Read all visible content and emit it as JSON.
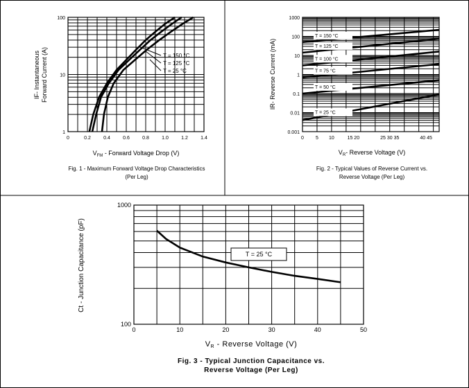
{
  "chart_data": [
    {
      "type": "line",
      "title": "Fig. 1 - Maximum Forward Voltage Drop Characteristics",
      "subtitle": "(Per Leg)",
      "xlabel_main": "V",
      "xlabel_sub": "FM",
      "xlabel_rest": " - Forward Voltage Drop (V)",
      "ylabel_line1": "IF- Instantaneous",
      "ylabel_line2": "Forward Current (A)",
      "xlim": [
        0,
        1.4
      ],
      "ylim": [
        1,
        100
      ],
      "yscale": "log",
      "xticks": [
        "0",
        "0.2",
        "0.4",
        "0.6",
        "0.8",
        "1.0",
        "1.2",
        "1.4"
      ],
      "yticks": [
        "1",
        "10",
        "100"
      ],
      "grid": true,
      "series": [
        {
          "name": "Tj = 150 °C",
          "label": "T  = 150 °C",
          "x": [
            0.22,
            0.26,
            0.32,
            0.4,
            0.5,
            0.6,
            0.7,
            0.8,
            0.9,
            1.0,
            1.1
          ],
          "y": [
            1,
            2,
            4,
            7,
            12,
            18,
            27,
            40,
            56,
            77,
            100
          ]
        },
        {
          "name": "Tj = 125 °C",
          "label": "T  = 125 °C",
          "x": [
            0.25,
            0.29,
            0.34,
            0.42,
            0.52,
            0.63,
            0.74,
            0.85,
            0.96,
            1.07,
            1.17
          ],
          "y": [
            1,
            2,
            4,
            7,
            12,
            18,
            27,
            40,
            56,
            77,
            100
          ]
        },
        {
          "name": "Tj = 25 °C",
          "label": "T  = 25 °C",
          "x": [
            0.35,
            0.37,
            0.41,
            0.47,
            0.57,
            0.69,
            0.81,
            0.94,
            1.06,
            1.18,
            1.29
          ],
          "y": [
            1,
            2,
            4,
            7,
            12,
            18,
            27,
            40,
            56,
            77,
            100
          ]
        }
      ]
    },
    {
      "type": "line",
      "title": "Fig. 2 - Typical Values of Reverse Current vs.",
      "subtitle": "Reverse Voltage (Per Leg)",
      "xlabel_main": "V",
      "xlabel_sub": "R",
      "xlabel_rest": "- Reverse Voltage (V)",
      "ylabel_main": "IR- Reverse Current (mA)",
      "xlim": [
        0,
        47
      ],
      "ylim": [
        0.001,
        1000
      ],
      "yscale": "log",
      "xticks": [
        "0",
        "5",
        "10",
        "15 20",
        "25 30 35",
        "40 45"
      ],
      "yticks": [
        "0.001",
        "0.01",
        "0.1",
        "1",
        "10",
        "100",
        "1000"
      ],
      "grid": true,
      "series": [
        {
          "name": "Tj = 150 °C",
          "label": "T  = 150 °C",
          "x": [
            0,
            47
          ],
          "y": [
            50,
            220
          ]
        },
        {
          "name": "Tj = 125 °C",
          "label": "T  = 125 °C",
          "x": [
            0,
            47
          ],
          "y": [
            14,
            75
          ]
        },
        {
          "name": "Tj = 100 °C",
          "label": "T  = 100 °C",
          "x": [
            0,
            47
          ],
          "y": [
            3,
            16
          ]
        },
        {
          "name": "Tj = 75 °C",
          "label": "T  = 75 °C",
          "x": [
            0,
            47
          ],
          "y": [
            0.7,
            3.5
          ]
        },
        {
          "name": "Tj = 50 °C",
          "label": "T  = 50 °C",
          "x": [
            0,
            47
          ],
          "y": [
            0.1,
            0.5
          ]
        },
        {
          "name": "Tj = 25 °C",
          "label": "T  = 25 °C",
          "x": [
            0,
            47
          ],
          "y": [
            0.004,
            0.09
          ]
        }
      ]
    },
    {
      "type": "line",
      "title": "Fig. 3 - Typical Junction Capacitance vs.",
      "subtitle": "Reverse Voltage (Per Leg)",
      "xlabel_main": "V",
      "xlabel_sub": "R",
      "xlabel_rest": " - Reverse Voltage (V)",
      "ylabel_main": "Ct - Junction Capacitance (pF)",
      "xlim": [
        0,
        50
      ],
      "ylim": [
        100,
        1000
      ],
      "yscale": "log",
      "xticks": [
        "0",
        "10",
        "20",
        "30",
        "40",
        "50"
      ],
      "yticks": [
        "100",
        "1000"
      ],
      "grid": true,
      "annotation": "T  = 25 °C",
      "series": [
        {
          "name": "Tj = 25 °C",
          "x": [
            5,
            7,
            10,
            15,
            20,
            25,
            30,
            35,
            40,
            45
          ],
          "y": [
            610,
            520,
            440,
            370,
            330,
            300,
            275,
            255,
            240,
            225
          ]
        }
      ]
    }
  ]
}
